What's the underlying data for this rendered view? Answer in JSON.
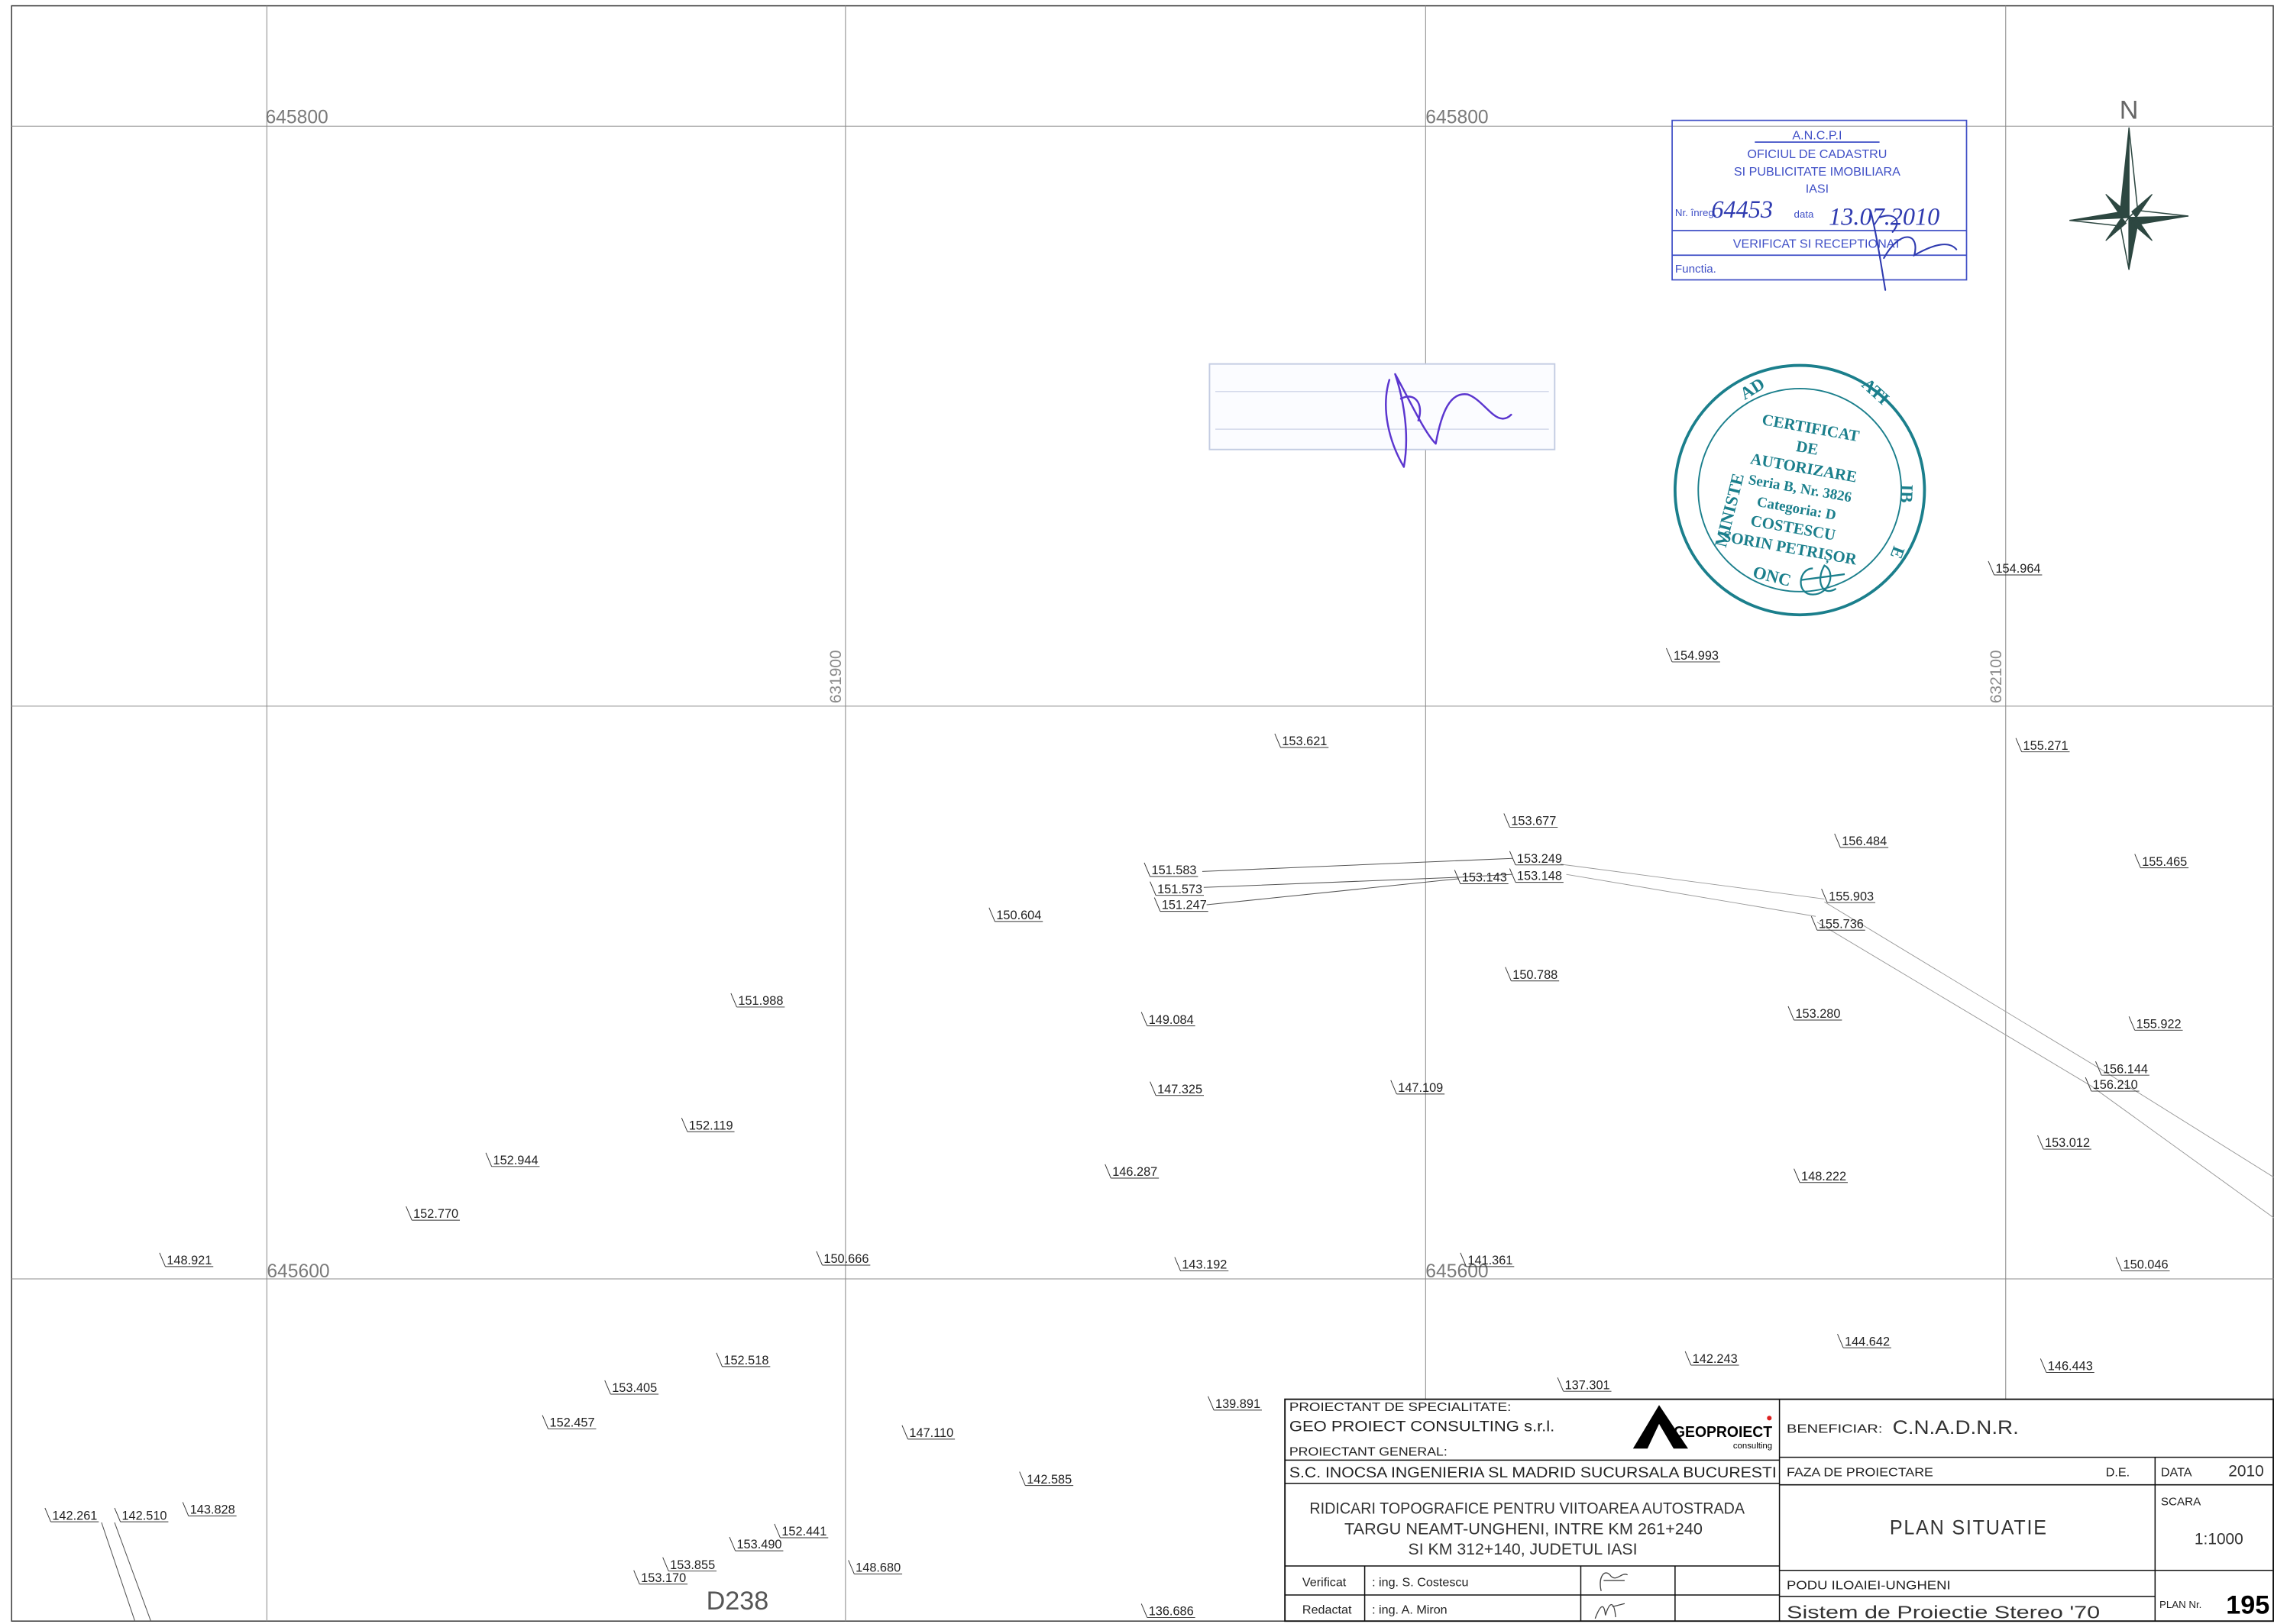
{
  "grid": {
    "northing_top_left": "645800",
    "northing_top_center": "645800",
    "northing_bottom_left": "645600",
    "northing_bottom_center": "645600",
    "easting_left": "631900",
    "easting_right": "632100"
  },
  "north_arrow": {
    "label": "N",
    "icon": "compass-star"
  },
  "stamp_ancpi": {
    "line1": "A.N.C.P.I",
    "line2": "OFICIUL DE CADASTRU",
    "line3": "SI PUBLICITATE IMOBILIARA",
    "line4": "IASI",
    "nr_label": "Nr. înreg.",
    "nr_value": "64453",
    "date_label": "data",
    "date_value": "13.07.2010",
    "verified": "VERIFICAT SI RECEPTIONAT",
    "function_label": "Functia."
  },
  "stamp_certificate": {
    "ring_left": "MINISTE",
    "ring_top_left": "AD",
    "ring_top_right": "ATI",
    "ring_right": "IB",
    "ring_right_low": "E",
    "ring_bottom": "ONC",
    "line1": "CERTIFICAT",
    "line2": "DE",
    "line3": "AUTORIZARE",
    "line4": "Seria B, Nr. 3826",
    "line5": "Categoria: D",
    "line6": "COSTESCU",
    "line7": "SORIN PETRIȘOR"
  },
  "spot_heights": [
    "154.964",
    "154.993",
    "153.621",
    "155.271",
    "153.677",
    "156.484",
    "155.465",
    "151.583",
    "153.249",
    "153.143",
    "153.148",
    "151.573",
    "151.247",
    "150.604",
    "155.903",
    "155.736",
    "150.788",
    "151.988",
    "153.280",
    "149.084",
    "155.922",
    "156.144",
    "156.210",
    "147.325",
    "147.109",
    "152.119",
    "153.012",
    "152.944",
    "146.287",
    "148.222",
    "152.770",
    "148.921",
    "150.666",
    "143.192",
    "141.361",
    "150.046",
    "144.642",
    "152.518",
    "142.243",
    "146.443",
    "137.301",
    "153.405",
    "139.891",
    "152.457",
    "147.110",
    "142.585",
    "143.828",
    "142.261",
    "142.510",
    "152.441",
    "153.490",
    "153.855",
    "148.680",
    "153.170",
    "136.686"
  ],
  "road_label": "D238",
  "title_block": {
    "specialist_designer_label": "PROIECTANT DE SPECIALITATE:",
    "specialist_designer": "GEO PROIECT CONSULTING  s.r.l.",
    "logo_name": "GEOPROIECT",
    "logo_sub": "consulting",
    "general_designer_label": "PROIECTANT GENERAL:",
    "general_designer": "S.C. INOCSA INGENIERIA SL MADRID SUCURSALA BUCURESTI",
    "project_title": [
      "RIDICARI TOPOGRAFICE PENTRU VIITOAREA AUTOSTRADA",
      "TARGU NEAMT-UNGHENI, INTRE KM 261+240",
      "SI KM 312+140, JUDETUL IASI"
    ],
    "checked_label": "Verificat",
    "checked_by": ": ing. S. Costescu",
    "drawn_label": "Redactat",
    "drawn_by": ": ing. A. Miron",
    "beneficiary_label": "BENEFICIAR:",
    "beneficiary": "C.N.A.D.N.R.",
    "phase_label": "FAZA DE PROIECTARE",
    "phase": "D.E.",
    "date_label": "DATA",
    "date": "2010",
    "scale_label": "SCARA",
    "scale": "1:1000",
    "drawing_title": "PLAN SITUATIE",
    "section": "PODU ILOAIEI-UNGHENI",
    "projection": "Sistem de Proiectie Stereo '70",
    "plan_no_label": "PLAN Nr.",
    "plan_no": "195"
  },
  "colors": {
    "grid": "#8c8c8c",
    "stamp_blue": "#3f4fc6",
    "handwriting_blue": "#2f3bb0",
    "stamp_teal": "#1b7f8c",
    "signature_purple": "#5b36cf",
    "north_arrow": "#2d4741"
  }
}
